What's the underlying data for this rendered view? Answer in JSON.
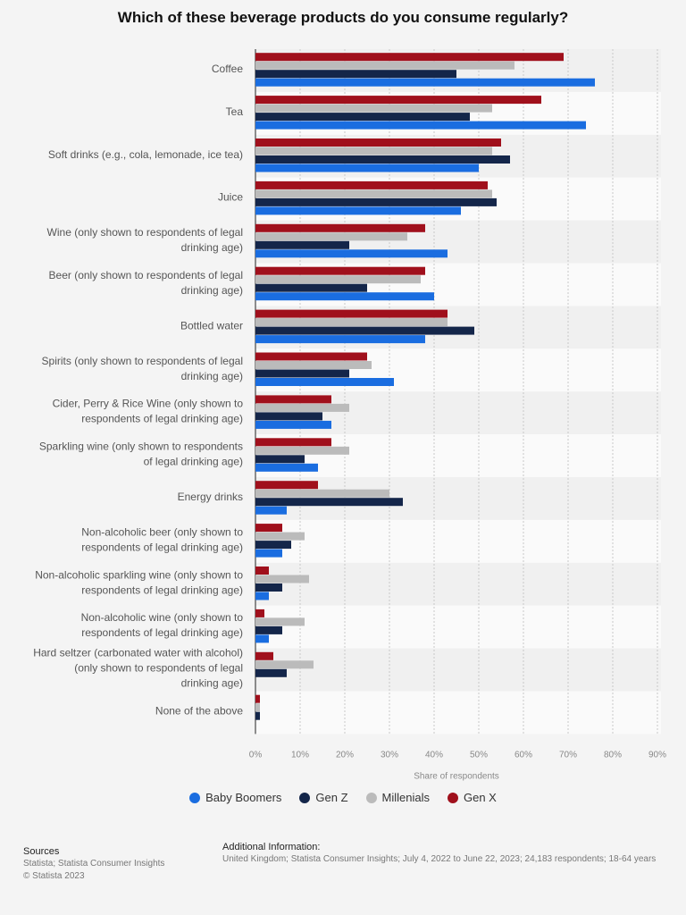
{
  "chart_data": {
    "type": "bar",
    "orientation": "horizontal",
    "title": "Which of these beverage products do you consume regularly?",
    "xlabel": "Share of respondents",
    "xlim": [
      0,
      90
    ],
    "xticks": [
      "0%",
      "10%",
      "20%",
      "30%",
      "40%",
      "50%",
      "60%",
      "70%",
      "80%",
      "90%"
    ],
    "grid": true,
    "legend_position": "bottom",
    "categories": [
      [
        "Coffee"
      ],
      [
        "Tea"
      ],
      [
        "Soft drinks (e.g., cola, lemonade, ice tea)"
      ],
      [
        "Juice"
      ],
      [
        "Wine (only shown to respondents of legal",
        "drinking age)"
      ],
      [
        "Beer (only shown to respondents of legal",
        "drinking age)"
      ],
      [
        "Bottled water"
      ],
      [
        "Spirits (only shown to respondents of legal",
        "drinking age)"
      ],
      [
        "Cider, Perry & Rice Wine (only shown to",
        "respondents of legal drinking age)"
      ],
      [
        "Sparkling wine (only shown to respondents",
        "of legal drinking age)"
      ],
      [
        "Energy drinks"
      ],
      [
        "Non-alcoholic beer (only shown to",
        "respondents of legal drinking age)"
      ],
      [
        "Non-alcoholic sparkling wine (only shown to",
        "respondents of legal drinking age)"
      ],
      [
        "Non-alcoholic wine (only shown to",
        "respondents of legal drinking age)"
      ],
      [
        "Hard seltzer (carbonated water with alcohol)",
        "(only shown to respondents of legal",
        "drinking age)"
      ],
      [
        "None of the above"
      ]
    ],
    "series": [
      {
        "name": "Gen X",
        "color": "#a0101c",
        "values": [
          69,
          64,
          55,
          52,
          38,
          38,
          43,
          25,
          17,
          17,
          14,
          6,
          3,
          2,
          4,
          1
        ]
      },
      {
        "name": "Millenials",
        "color": "#bbbbbb",
        "values": [
          58,
          53,
          53,
          53,
          34,
          37,
          43,
          26,
          21,
          21,
          30,
          11,
          12,
          11,
          13,
          1
        ]
      },
      {
        "name": "Gen Z",
        "color": "#14264a",
        "values": [
          45,
          48,
          57,
          54,
          21,
          25,
          49,
          21,
          15,
          11,
          33,
          8,
          6,
          6,
          7,
          1
        ]
      },
      {
        "name": "Baby Boomers",
        "color": "#1a6de0",
        "values": [
          76,
          74,
          50,
          46,
          43,
          40,
          38,
          31,
          17,
          14,
          7,
          6,
          3,
          3,
          0,
          0
        ]
      }
    ]
  },
  "legend_order": [
    "Baby Boomers",
    "Gen Z",
    "Millenials",
    "Gen X"
  ],
  "sources": {
    "heading": "Sources",
    "line1": "Statista; Statista Consumer Insights",
    "line2": "© Statista 2023"
  },
  "additional_info": {
    "heading": "Additional Information:",
    "text": "United Kingdom; Statista Consumer Insights; July 4, 2022 to June 22, 2023; 24,183 respondents; 18-64 years"
  }
}
